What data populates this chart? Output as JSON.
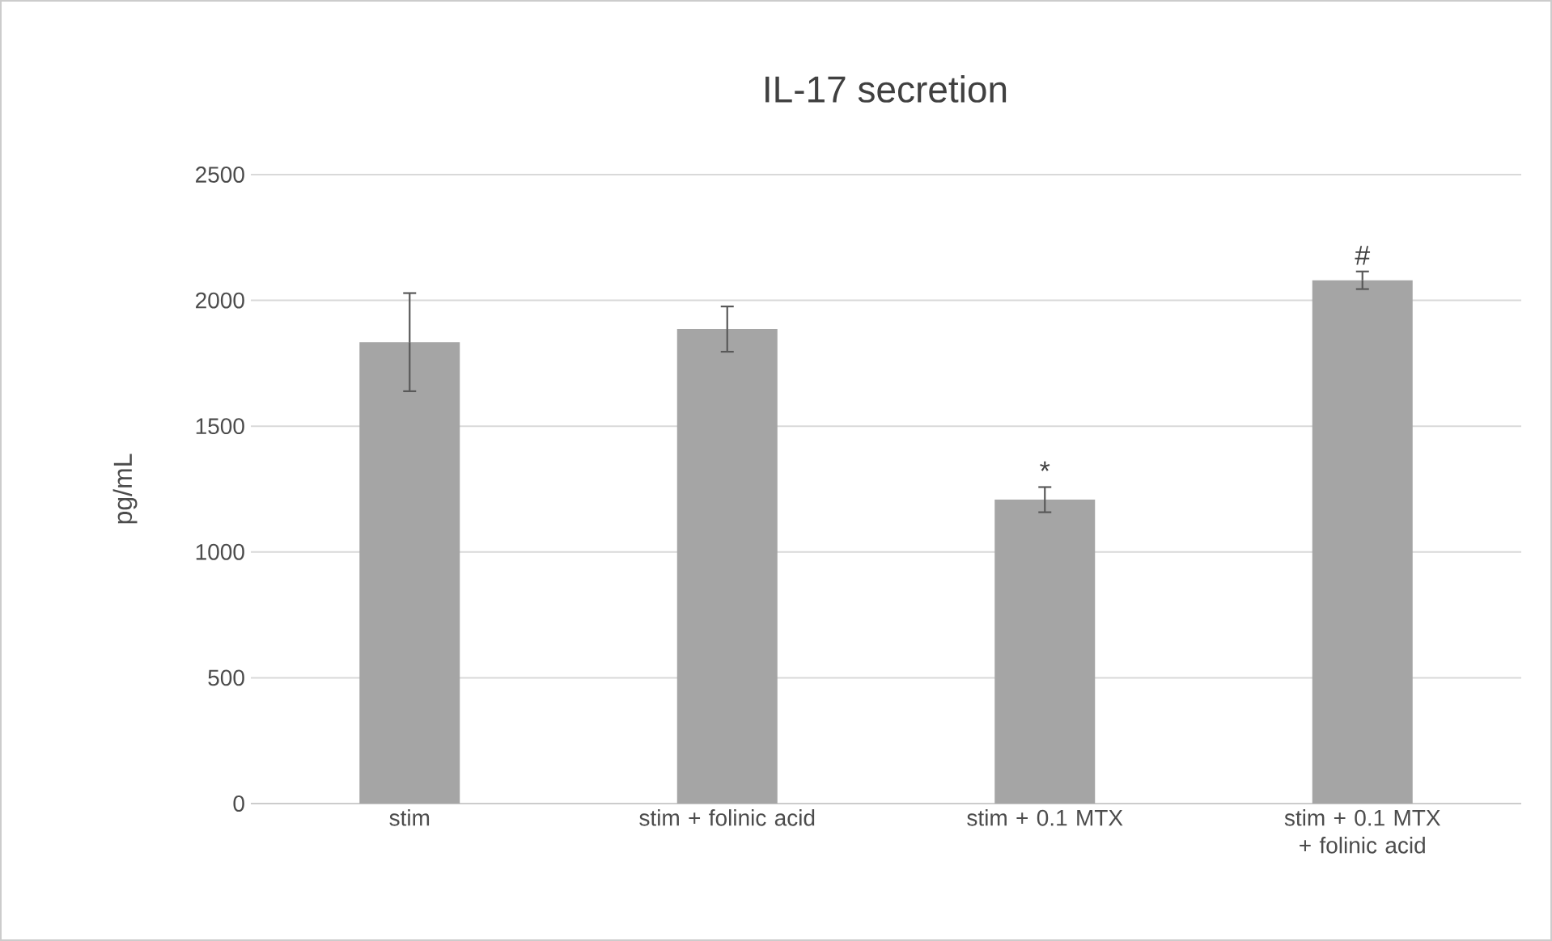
{
  "chart_data": {
    "type": "bar",
    "title": "IL-17 secretion",
    "ylabel": "pg/mL",
    "categories": [
      "stim",
      "stim + folinic acid",
      "stim + 0.1 MTX",
      "stim + 0.1 MTX + folinic acid"
    ],
    "values": [
      1834,
      1886,
      1208,
      2080
    ],
    "errors": [
      195,
      90,
      50,
      35
    ],
    "color": "#a5a5a5",
    "ylim": [
      0,
      2500
    ],
    "yticks": [
      0,
      500,
      1000,
      1500,
      2000,
      2500
    ],
    "grid": "y",
    "annotations": [
      {
        "text": "*",
        "x": "stim + 0.1 MTX",
        "y": 1208
      },
      {
        "text": "#",
        "x": "stim + 0.1 MTX + folinic acid",
        "y": 2080
      }
    ]
  }
}
